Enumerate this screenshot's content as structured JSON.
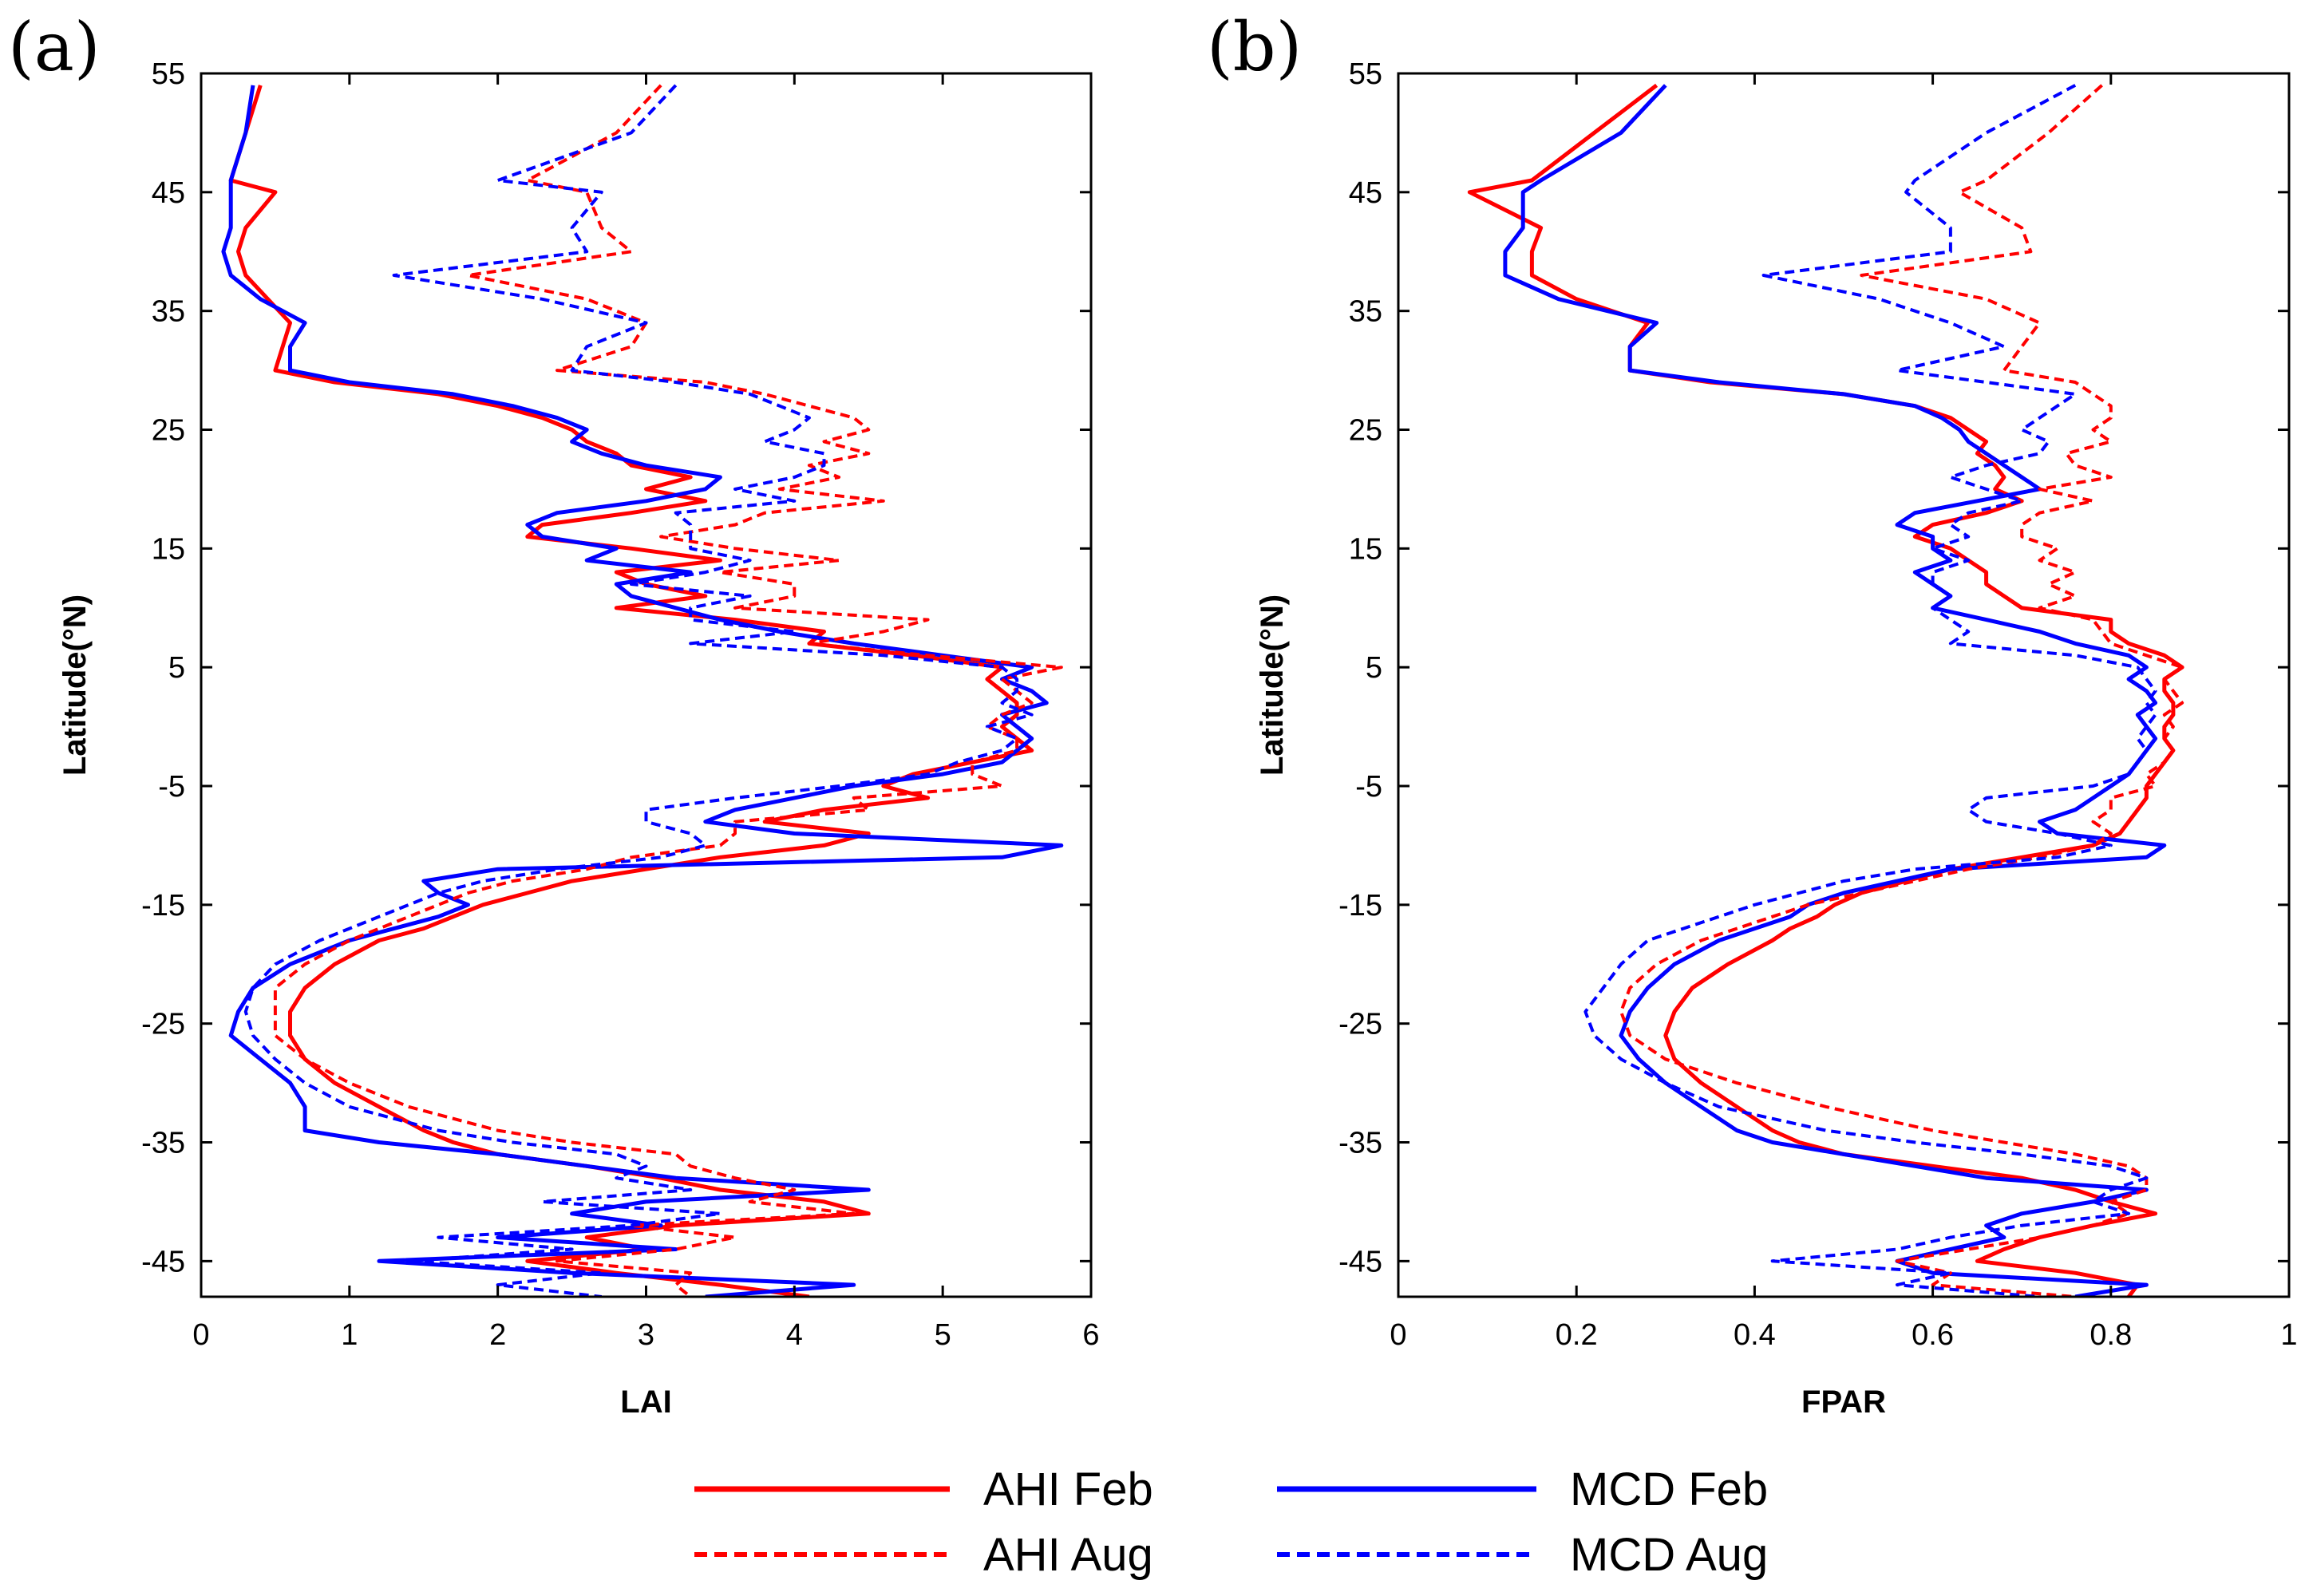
{
  "figure": {
    "legend": {
      "entries": [
        {
          "label": "AHI Feb",
          "color": "#ff0000",
          "dashed": false
        },
        {
          "label": "MCD Feb",
          "color": "#0000ff",
          "dashed": false
        },
        {
          "label": "AHI Aug",
          "color": "#ff0000",
          "dashed": true
        },
        {
          "label": "MCD Aug",
          "color": "#0000ff",
          "dashed": true
        }
      ]
    }
  },
  "chart_data": [
    {
      "type": "line",
      "panel_label": "(a)",
      "xlabel": "LAI",
      "ylabel": "Latitude(°N)",
      "xlim": [
        0,
        6
      ],
      "ylim": [
        -48,
        55
      ],
      "xticks": [
        "0",
        "1",
        "2",
        "3",
        "4",
        "5",
        "6"
      ],
      "xtick_values": [
        0,
        1,
        2,
        3,
        4,
        5,
        6
      ],
      "yticks": [
        "55",
        "45",
        "35",
        "25",
        "15",
        "5",
        "-5",
        "-15",
        "-25",
        "-35",
        "-45"
      ],
      "ytick_values": [
        55,
        45,
        35,
        25,
        15,
        5,
        -5,
        -15,
        -25,
        -35,
        -45
      ],
      "latitudes": [
        54,
        50,
        46,
        45,
        42,
        40,
        38,
        36,
        34,
        32,
        30,
        29,
        28,
        27,
        26,
        25,
        24,
        23,
        22,
        21,
        20,
        19,
        18,
        17,
        16,
        15,
        14,
        13,
        12,
        11,
        10,
        9,
        8,
        7,
        6,
        5,
        4,
        3,
        2,
        1,
        0,
        -1,
        -2,
        -3,
        -4,
        -5,
        -6,
        -7,
        -8,
        -9,
        -10,
        -11,
        -12,
        -13,
        -14,
        -15,
        -16,
        -17,
        -18,
        -20,
        -22,
        -24,
        -26,
        -28,
        -30,
        -32,
        -34,
        -35,
        -36,
        -37,
        -38,
        -39,
        -40,
        -41,
        -42,
        -43,
        -44,
        -45,
        -46,
        -47,
        -48
      ],
      "series": [
        {
          "name": "AHI Feb",
          "color": "#ff0000",
          "dashed": false,
          "values": [
            0.4,
            0.3,
            0.2,
            0.5,
            0.3,
            0.25,
            0.3,
            0.45,
            0.6,
            0.55,
            0.5,
            0.9,
            1.6,
            2.0,
            2.3,
            2.5,
            2.6,
            2.8,
            2.9,
            3.3,
            3.0,
            3.4,
            2.9,
            2.3,
            2.2,
            2.9,
            3.5,
            2.8,
            3.0,
            3.4,
            2.8,
            3.6,
            4.2,
            4.1,
            4.8,
            5.4,
            5.3,
            5.4,
            5.5,
            5.5,
            5.4,
            5.5,
            5.6,
            5.2,
            4.8,
            4.6,
            4.9,
            4.2,
            3.8,
            4.5,
            4.2,
            3.5,
            3.0,
            2.5,
            2.2,
            1.9,
            1.7,
            1.5,
            1.2,
            0.9,
            0.7,
            0.6,
            0.6,
            0.7,
            0.9,
            1.2,
            1.5,
            1.7,
            2.0,
            2.6,
            3.1,
            3.5,
            4.2,
            4.5,
            3.2,
            2.6,
            3.0,
            2.2,
            2.8,
            3.5,
            4.1
          ]
        },
        {
          "name": "MCD Feb",
          "color": "#0000ff",
          "dashed": false,
          "values": [
            0.35,
            0.3,
            0.2,
            0.2,
            0.2,
            0.15,
            0.2,
            0.4,
            0.7,
            0.6,
            0.6,
            1.0,
            1.7,
            2.1,
            2.4,
            2.6,
            2.5,
            2.7,
            3.0,
            3.5,
            3.4,
            3.0,
            2.4,
            2.2,
            2.3,
            2.8,
            2.6,
            3.3,
            2.8,
            2.9,
            3.2,
            3.5,
            3.9,
            4.4,
            5.0,
            5.6,
            5.4,
            5.6,
            5.7,
            5.4,
            5.5,
            5.6,
            5.5,
            5.4,
            5.0,
            4.4,
            4.0,
            3.6,
            3.4,
            4.0,
            5.8,
            5.4,
            2.0,
            1.5,
            1.6,
            1.8,
            1.6,
            1.3,
            1.0,
            0.6,
            0.35,
            0.25,
            0.2,
            0.4,
            0.6,
            0.7,
            0.7,
            1.2,
            2.0,
            2.6,
            3.2,
            4.5,
            3.0,
            2.5,
            3.1,
            2.0,
            3.2,
            1.2,
            2.5,
            4.4,
            3.4
          ]
        },
        {
          "name": "AHI Aug",
          "color": "#ff0000",
          "dashed": true,
          "values": [
            3.1,
            2.8,
            2.2,
            2.6,
            2.7,
            2.9,
            1.8,
            2.6,
            3.0,
            2.9,
            2.4,
            3.4,
            3.8,
            4.1,
            4.4,
            4.5,
            4.2,
            4.5,
            4.1,
            4.3,
            3.9,
            4.6,
            3.8,
            3.6,
            3.1,
            3.6,
            4.3,
            3.5,
            4.0,
            4.0,
            3.6,
            4.9,
            4.6,
            4.1,
            4.9,
            5.8,
            5.4,
            5.5,
            5.6,
            5.4,
            5.3,
            5.5,
            5.5,
            5.2,
            5.2,
            5.4,
            4.4,
            4.5,
            3.6,
            3.6,
            3.5,
            2.9,
            2.6,
            2.1,
            1.8,
            1.6,
            1.4,
            1.2,
            1.0,
            0.7,
            0.5,
            0.5,
            0.5,
            0.7,
            1.0,
            1.4,
            2.0,
            2.5,
            3.2,
            3.3,
            3.6,
            4.0,
            3.7,
            4.4,
            2.9,
            3.6,
            3.2,
            2.4,
            3.3,
            3.2,
            3.3
          ]
        },
        {
          "name": "MCD Aug",
          "color": "#0000ff",
          "dashed": true,
          "values": [
            3.2,
            2.9,
            2.0,
            2.7,
            2.5,
            2.6,
            1.3,
            2.3,
            3.0,
            2.6,
            2.5,
            3.2,
            3.7,
            3.9,
            4.1,
            4.0,
            3.8,
            4.2,
            4.2,
            4.0,
            3.6,
            4.0,
            3.2,
            3.3,
            3.3,
            3.3,
            3.7,
            3.4,
            2.9,
            3.7,
            3.3,
            3.3,
            4.0,
            3.3,
            4.6,
            5.4,
            5.5,
            5.5,
            5.4,
            5.6,
            5.3,
            5.5,
            5.4,
            5.1,
            4.9,
            4.3,
            3.6,
            3.0,
            3.0,
            3.3,
            3.4,
            3.1,
            2.4,
            1.9,
            1.6,
            1.4,
            1.2,
            1.0,
            0.8,
            0.5,
            0.35,
            0.3,
            0.35,
            0.5,
            0.7,
            1.0,
            1.6,
            2.1,
            2.8,
            3.0,
            2.8,
            3.3,
            2.3,
            3.5,
            2.9,
            1.6,
            2.5,
            1.4,
            2.7,
            2.0,
            2.7
          ]
        }
      ]
    },
    {
      "type": "line",
      "panel_label": "(b)",
      "xlabel": "FPAR",
      "ylabel": "Latitude(°N)",
      "xlim": [
        0,
        1
      ],
      "ylim": [
        -48,
        55
      ],
      "xticks": [
        "0",
        "0.2",
        "0.4",
        "0.6",
        "0.8",
        "1"
      ],
      "xtick_values": [
        0,
        0.2,
        0.4,
        0.6,
        0.8,
        1
      ],
      "yticks": [
        "55",
        "45",
        "35",
        "25",
        "15",
        "5",
        "-5",
        "-15",
        "-25",
        "-35",
        "-45"
      ],
      "ytick_values": [
        55,
        45,
        35,
        25,
        15,
        5,
        -5,
        -15,
        -25,
        -35,
        -45
      ],
      "latitudes": [
        54,
        50,
        46,
        45,
        42,
        40,
        38,
        36,
        34,
        32,
        30,
        29,
        28,
        27,
        26,
        25,
        24,
        23,
        22,
        21,
        20,
        19,
        18,
        17,
        16,
        15,
        14,
        13,
        12,
        11,
        10,
        9,
        8,
        7,
        6,
        5,
        4,
        3,
        2,
        1,
        0,
        -1,
        -2,
        -3,
        -4,
        -5,
        -6,
        -7,
        -8,
        -9,
        -10,
        -11,
        -12,
        -13,
        -14,
        -15,
        -16,
        -17,
        -18,
        -20,
        -22,
        -24,
        -26,
        -28,
        -30,
        -32,
        -34,
        -35,
        -36,
        -37,
        -38,
        -39,
        -40,
        -41,
        -42,
        -43,
        -44,
        -45,
        -46,
        -47,
        -48
      ],
      "series": [
        {
          "name": "AHI Feb",
          "color": "#ff0000",
          "dashed": false,
          "values": [
            0.29,
            0.22,
            0.15,
            0.08,
            0.16,
            0.15,
            0.15,
            0.2,
            0.28,
            0.26,
            0.26,
            0.35,
            0.5,
            0.58,
            0.62,
            0.64,
            0.66,
            0.65,
            0.67,
            0.68,
            0.67,
            0.7,
            0.66,
            0.6,
            0.58,
            0.62,
            0.64,
            0.66,
            0.66,
            0.68,
            0.7,
            0.8,
            0.8,
            0.82,
            0.86,
            0.88,
            0.86,
            0.86,
            0.87,
            0.87,
            0.86,
            0.86,
            0.87,
            0.86,
            0.85,
            0.84,
            0.84,
            0.83,
            0.82,
            0.81,
            0.78,
            0.7,
            0.62,
            0.57,
            0.52,
            0.49,
            0.47,
            0.44,
            0.42,
            0.37,
            0.33,
            0.31,
            0.3,
            0.31,
            0.34,
            0.38,
            0.42,
            0.45,
            0.5,
            0.6,
            0.7,
            0.76,
            0.8,
            0.85,
            0.78,
            0.72,
            0.68,
            0.65,
            0.76,
            0.83,
            0.82
          ]
        },
        {
          "name": "MCD Feb",
          "color": "#0000ff",
          "dashed": false,
          "values": [
            0.3,
            0.25,
            0.16,
            0.14,
            0.14,
            0.12,
            0.12,
            0.18,
            0.29,
            0.26,
            0.26,
            0.36,
            0.5,
            0.58,
            0.61,
            0.63,
            0.64,
            0.66,
            0.68,
            0.7,
            0.72,
            0.65,
            0.58,
            0.56,
            0.6,
            0.6,
            0.62,
            0.58,
            0.6,
            0.62,
            0.6,
            0.66,
            0.72,
            0.76,
            0.82,
            0.84,
            0.82,
            0.84,
            0.85,
            0.83,
            0.84,
            0.85,
            0.84,
            0.83,
            0.82,
            0.8,
            0.78,
            0.76,
            0.72,
            0.74,
            0.86,
            0.84,
            0.62,
            0.56,
            0.5,
            0.46,
            0.44,
            0.4,
            0.36,
            0.31,
            0.28,
            0.26,
            0.25,
            0.27,
            0.3,
            0.34,
            0.38,
            0.42,
            0.5,
            0.58,
            0.66,
            0.84,
            0.78,
            0.7,
            0.66,
            0.68,
            0.62,
            0.56,
            0.6,
            0.84,
            0.76
          ]
        },
        {
          "name": "AHI Aug",
          "color": "#ff0000",
          "dashed": true,
          "values": [
            0.79,
            0.73,
            0.66,
            0.63,
            0.7,
            0.71,
            0.52,
            0.66,
            0.72,
            0.7,
            0.68,
            0.76,
            0.78,
            0.8,
            0.8,
            0.78,
            0.8,
            0.75,
            0.76,
            0.8,
            0.72,
            0.78,
            0.72,
            0.7,
            0.7,
            0.74,
            0.72,
            0.76,
            0.73,
            0.76,
            0.72,
            0.78,
            0.79,
            0.8,
            0.84,
            0.88,
            0.86,
            0.87,
            0.88,
            0.86,
            0.87,
            0.86,
            0.87,
            0.86,
            0.84,
            0.85,
            0.8,
            0.8,
            0.78,
            0.8,
            0.78,
            0.72,
            0.64,
            0.58,
            0.52,
            0.46,
            0.42,
            0.38,
            0.34,
            0.29,
            0.26,
            0.25,
            0.26,
            0.3,
            0.38,
            0.48,
            0.6,
            0.68,
            0.76,
            0.82,
            0.84,
            0.84,
            0.8,
            0.82,
            0.78,
            0.72,
            0.64,
            0.56,
            0.62,
            0.6,
            0.76
          ]
        },
        {
          "name": "MCD Aug",
          "color": "#0000ff",
          "dashed": true,
          "values": [
            0.76,
            0.66,
            0.58,
            0.57,
            0.62,
            0.62,
            0.41,
            0.54,
            0.62,
            0.68,
            0.56,
            0.66,
            0.76,
            0.74,
            0.72,
            0.7,
            0.73,
            0.72,
            0.66,
            0.62,
            0.66,
            0.7,
            0.64,
            0.62,
            0.64,
            0.6,
            0.64,
            0.6,
            0.6,
            0.62,
            0.6,
            0.62,
            0.64,
            0.62,
            0.76,
            0.83,
            0.84,
            0.85,
            0.84,
            0.85,
            0.84,
            0.83,
            0.84,
            0.83,
            0.82,
            0.78,
            0.66,
            0.64,
            0.66,
            0.74,
            0.8,
            0.74,
            0.58,
            0.5,
            0.45,
            0.4,
            0.36,
            0.32,
            0.28,
            0.25,
            0.23,
            0.21,
            0.22,
            0.25,
            0.3,
            0.36,
            0.48,
            0.58,
            0.7,
            0.8,
            0.84,
            0.8,
            0.78,
            0.82,
            0.7,
            0.62,
            0.56,
            0.42,
            0.62,
            0.56,
            0.72
          ]
        }
      ]
    }
  ]
}
